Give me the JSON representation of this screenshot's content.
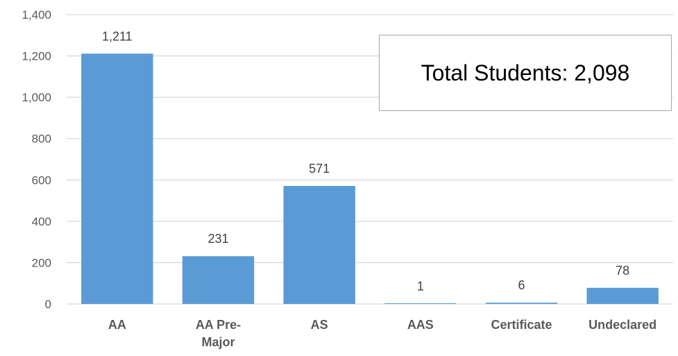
{
  "chart_data": {
    "type": "bar",
    "categories": [
      "AA",
      "AA Pre-Major",
      "AS",
      "AAS",
      "Certificate",
      "Undeclared"
    ],
    "category_label_lines": [
      [
        "AA"
      ],
      [
        "AA Pre-",
        "Major"
      ],
      [
        "AS"
      ],
      [
        "AAS"
      ],
      [
        "Certificate"
      ],
      [
        "Undeclared"
      ]
    ],
    "values": [
      1211,
      231,
      571,
      1,
      6,
      78
    ],
    "value_labels": [
      "1,211",
      "231",
      "571",
      "1",
      "6",
      "78"
    ],
    "ylim": [
      0,
      1400
    ],
    "yticks": [
      0,
      200,
      400,
      600,
      800,
      1000,
      1200,
      1400
    ],
    "ytick_labels": [
      "0",
      "200",
      "400",
      "600",
      "800",
      "1,000",
      "1,200",
      "1,400"
    ],
    "title": "",
    "xlabel": "",
    "ylabel": "",
    "grid": true,
    "legend": "none",
    "bar_color": "#5b9bd5",
    "grid_color": "#d9d9d9",
    "annotation": "Total Students: 2,098"
  }
}
